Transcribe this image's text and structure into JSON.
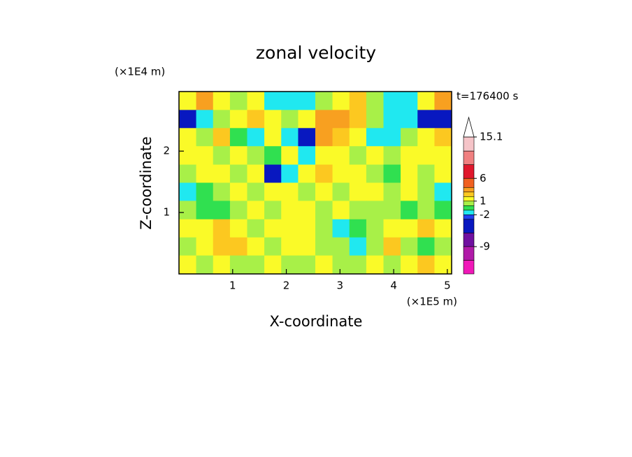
{
  "chart_data": {
    "type": "contour",
    "title": "zonal velocity",
    "x_label": "X-coordinate",
    "y_label": "Z-coordinate",
    "x_unit": "(×1E5 m)",
    "y_unit": "(×1E4 m)",
    "annotation": "t=176400 s",
    "xlim": [
      0,
      5.08
    ],
    "ylim": [
      0,
      2.97
    ],
    "xticks": [
      1,
      2,
      3,
      4,
      5
    ],
    "yticks": [
      1,
      2
    ],
    "x": [
      0.16,
      0.48,
      0.79,
      1.11,
      1.43,
      1.75,
      2.06,
      2.38,
      2.7,
      3.02,
      3.33,
      3.65,
      3.97,
      4.29,
      4.6,
      4.92
    ],
    "y": [
      2.82,
      2.52,
      2.23,
      1.93,
      1.63,
      1.34,
      1.04,
      0.74,
      0.45,
      0.15
    ],
    "z": [
      [
        2,
        3.5,
        1.5,
        0.5,
        1.5,
        -1.5,
        -1.5,
        -1.5,
        0.5,
        1.5,
        2.5,
        0.5,
        -1.5,
        -1.5,
        1.5,
        3.5
      ],
      [
        -4,
        -1.5,
        0.5,
        1.5,
        2.5,
        1.5,
        0.5,
        1.5,
        3.5,
        3.5,
        2.5,
        0.5,
        -1.5,
        -1.5,
        -4,
        -4
      ],
      [
        1.5,
        0.5,
        2.5,
        -0.5,
        -1.5,
        1.5,
        -1.5,
        -4,
        3.5,
        2.5,
        1.5,
        -1.5,
        -1.5,
        0.5,
        1.5,
        2.5
      ],
      [
        1.5,
        1.5,
        0.5,
        1.5,
        0.5,
        -0.5,
        1.5,
        -1.5,
        1.5,
        1.5,
        0.5,
        1.5,
        0.5,
        1.5,
        1.5,
        1.5
      ],
      [
        0.5,
        1.5,
        1.5,
        0.5,
        1.5,
        -4,
        -1.5,
        1.5,
        2.5,
        1.5,
        1.5,
        0.5,
        -0.5,
        1.5,
        0.5,
        1.5
      ],
      [
        -1.5,
        -0.5,
        0.5,
        1.5,
        0.5,
        1.5,
        1.5,
        0.5,
        1.5,
        0.5,
        1.5,
        1.5,
        0.5,
        1.5,
        0.5,
        -1.5
      ],
      [
        0.5,
        -0.5,
        -0.5,
        0.5,
        1.5,
        0.5,
        1.5,
        1.5,
        0.5,
        1.5,
        0.5,
        0.5,
        0.5,
        -0.5,
        0.5,
        -0.5
      ],
      [
        1.5,
        1.5,
        2.5,
        1.5,
        0.5,
        1.5,
        1.5,
        1.5,
        0.5,
        -1.5,
        -0.5,
        0.5,
        1.5,
        1.5,
        2.5,
        1.5
      ],
      [
        0.5,
        1.5,
        2.5,
        2.5,
        1.5,
        0.5,
        1.5,
        1.5,
        0.5,
        0.5,
        -1.5,
        0.5,
        2.5,
        0.5,
        -0.5,
        0.5
      ],
      [
        1.5,
        0.5,
        1.5,
        0.5,
        0.5,
        1.5,
        0.5,
        0.5,
        1.5,
        0.5,
        0.5,
        1.5,
        0.5,
        1.5,
        2.5,
        1.5
      ]
    ],
    "levels": [
      15.1,
      12,
      9,
      6,
      4,
      3,
      2,
      1,
      0,
      -1,
      -2,
      -3,
      -6,
      -9,
      -12,
      -15
    ],
    "colors": [
      "#f5c4c8",
      "#f08080",
      "#e0182c",
      "#f06020",
      "#f8a020",
      "#fcc820",
      "#fafa28",
      "#a8f048",
      "#30e050",
      "#20e8f0",
      "#2040f0",
      "#0818c0",
      "#7010a0",
      "#b01aa8",
      "#f018b8"
    ],
    "colorbar_ticks": [
      15.1,
      6,
      1,
      -2,
      -9
    ]
  }
}
